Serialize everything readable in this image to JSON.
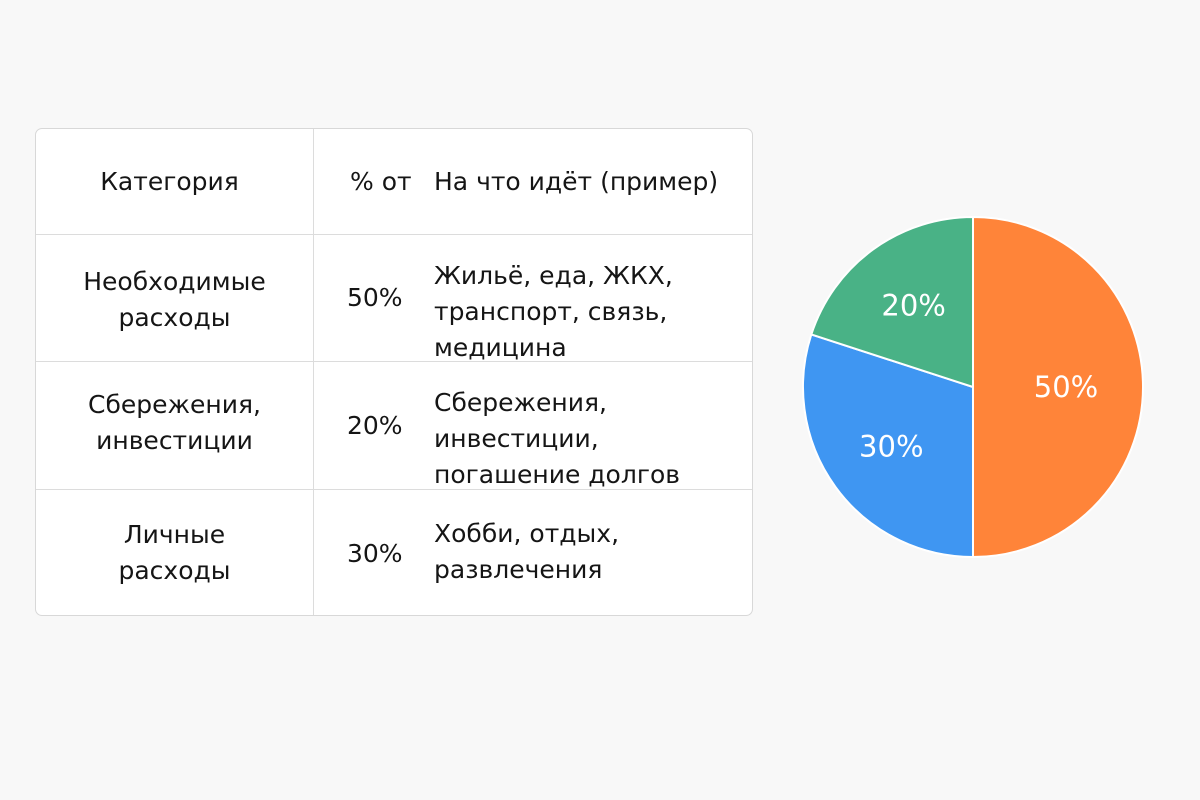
{
  "table": {
    "headers": [
      "Категория",
      "% от",
      "На что идёт (пример)"
    ],
    "rows": [
      {
        "category": "Необходимые\nрасходы",
        "percent": "50%",
        "examples": "Жильё, еда, ЖКХ,\nтранспорт, связь,\nмедицина"
      },
      {
        "category": "Сбережения,\nинвестиции",
        "percent": "20%",
        "examples": "Сбережения,\nинвестиции,\nпогашение долгов"
      },
      {
        "category": "Личные\nрасходы",
        "percent": "30%",
        "examples": "Хобби, отдых,\nразвлечения"
      }
    ]
  },
  "chart_data": {
    "type": "pie",
    "title": "",
    "slices": [
      {
        "label": "50%",
        "value": 50,
        "color": "#ff8439"
      },
      {
        "label": "30%",
        "value": 30,
        "color": "#3f96f2"
      },
      {
        "label": "20%",
        "value": 20,
        "color": "#49b286"
      }
    ],
    "start_angle_degrees": 0,
    "direction": "clockwise",
    "legend": "none"
  }
}
